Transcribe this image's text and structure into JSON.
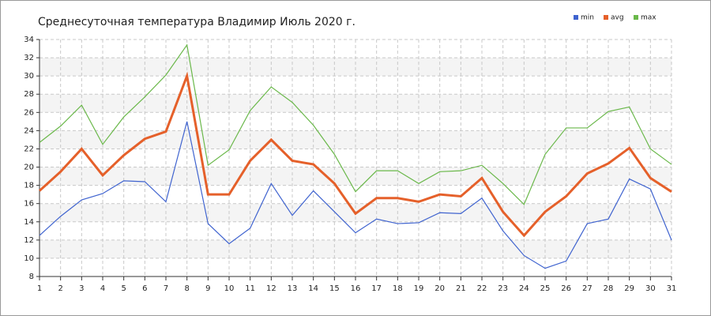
{
  "chart_data": {
    "type": "line",
    "title": "Среднесуточная температура Владимир  Июль 2020 г.",
    "x": [
      1,
      2,
      3,
      4,
      5,
      6,
      7,
      8,
      9,
      10,
      11,
      12,
      13,
      14,
      15,
      16,
      17,
      18,
      19,
      20,
      21,
      22,
      23,
      24,
      25,
      26,
      27,
      28,
      29,
      30,
      31
    ],
    "xlim": [
      1,
      31
    ],
    "xticks": [
      1,
      2,
      3,
      4,
      5,
      6,
      7,
      8,
      9,
      10,
      11,
      12,
      13,
      14,
      15,
      16,
      17,
      18,
      19,
      20,
      21,
      22,
      23,
      24,
      25,
      26,
      27,
      28,
      29,
      30,
      31
    ],
    "ylim": [
      8,
      34
    ],
    "yticks": [
      8,
      10,
      12,
      14,
      16,
      18,
      20,
      22,
      24,
      26,
      28,
      30,
      32,
      34
    ],
    "grid": true,
    "legend": "top-right",
    "series": [
      {
        "name": "min",
        "color": "#3f63cf",
        "values": [
          12.5,
          14.6,
          16.4,
          17.1,
          18.5,
          18.4,
          16.2,
          25.0,
          13.8,
          11.6,
          13.3,
          18.2,
          14.7,
          17.4,
          15.1,
          12.8,
          14.3,
          13.8,
          13.9,
          15.0,
          14.9,
          16.6,
          13.0,
          10.3,
          8.9,
          9.7,
          13.8,
          14.3,
          18.7,
          17.6,
          12.0
        ]
      },
      {
        "name": "avg",
        "color": "#e5602a",
        "values": [
          17.4,
          19.5,
          22.0,
          19.1,
          21.3,
          23.1,
          23.9,
          30.0,
          17.0,
          17.0,
          20.7,
          23.0,
          20.7,
          20.3,
          18.2,
          14.9,
          16.6,
          16.6,
          16.2,
          17.0,
          16.8,
          18.8,
          15.1,
          12.5,
          15.1,
          16.8,
          19.3,
          20.4,
          22.1,
          18.8,
          17.3
        ]
      },
      {
        "name": "max",
        "color": "#6ab84a",
        "values": [
          22.7,
          24.5,
          26.8,
          22.5,
          25.5,
          27.7,
          30.1,
          33.4,
          20.2,
          21.9,
          26.2,
          28.8,
          27.1,
          24.6,
          21.4,
          17.3,
          19.6,
          19.6,
          18.2,
          19.5,
          19.6,
          20.2,
          18.2,
          15.9,
          21.4,
          24.3,
          24.3,
          26.1,
          26.6,
          22.0,
          20.3
        ]
      }
    ]
  }
}
